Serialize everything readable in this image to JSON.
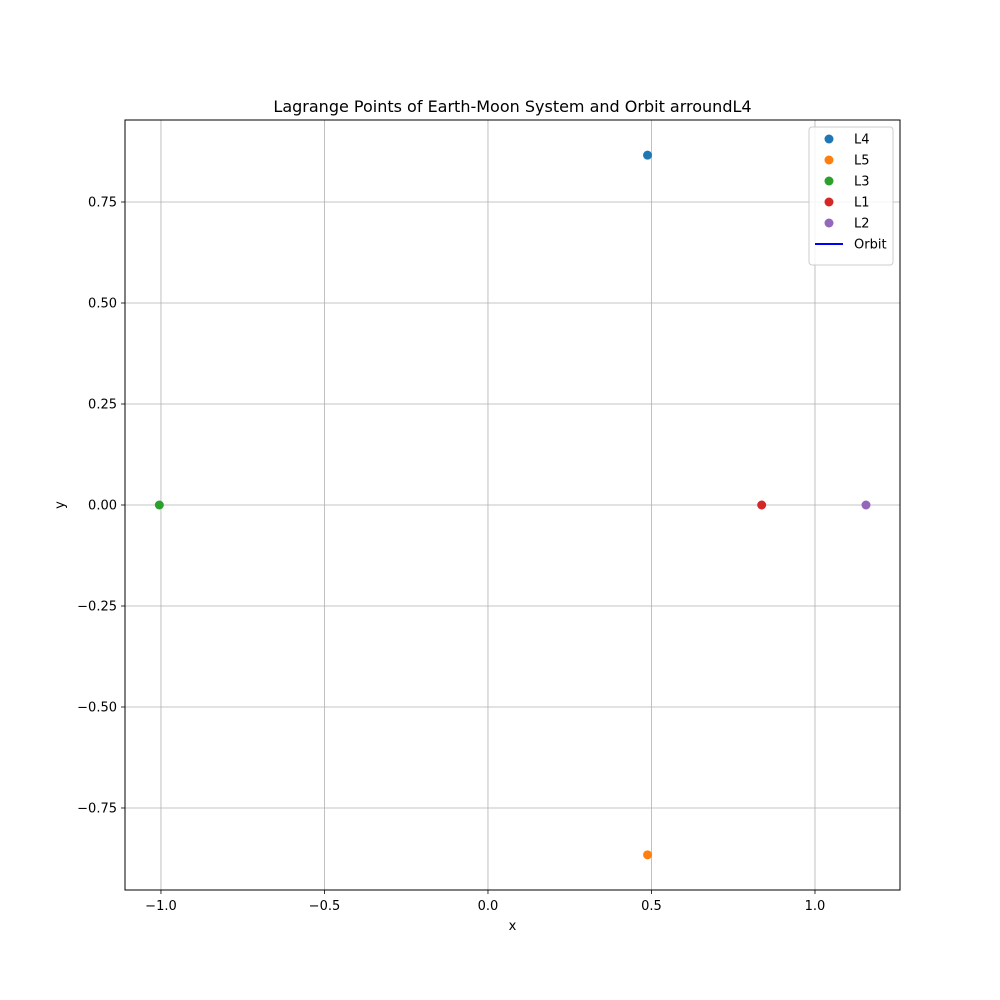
{
  "chart_data": {
    "type": "scatter",
    "title": "Lagrange Points of Earth-Moon System and Orbit arroundL4",
    "xlabel": "x",
    "ylabel": "y",
    "xlim": [
      -1.11,
      1.26
    ],
    "ylim": [
      -0.953,
      0.953
    ],
    "xticks": [
      {
        "value": -1.0,
        "label": "−1.0"
      },
      {
        "value": -0.5,
        "label": "−0.5"
      },
      {
        "value": 0.0,
        "label": "0.0"
      },
      {
        "value": 0.5,
        "label": "0.5"
      },
      {
        "value": 1.0,
        "label": "1.0"
      }
    ],
    "yticks": [
      {
        "value": -0.75,
        "label": "−0.75"
      },
      {
        "value": -0.5,
        "label": "−0.50"
      },
      {
        "value": -0.25,
        "label": "−0.25"
      },
      {
        "value": 0.0,
        "label": "0.00"
      },
      {
        "value": 0.25,
        "label": "0.25"
      },
      {
        "value": 0.5,
        "label": "0.50"
      },
      {
        "value": 0.75,
        "label": "0.75"
      }
    ],
    "grid": true,
    "legend_position": "top-right",
    "series": [
      {
        "name": "L4",
        "kind": "point",
        "color": "#1f77b4",
        "points": [
          [
            0.488,
            0.866
          ]
        ]
      },
      {
        "name": "L5",
        "kind": "point",
        "color": "#ff7f0e",
        "points": [
          [
            0.488,
            -0.866
          ]
        ]
      },
      {
        "name": "L3",
        "kind": "point",
        "color": "#2ca02c",
        "points": [
          [
            -1.005,
            0.0
          ]
        ]
      },
      {
        "name": "L1",
        "kind": "point",
        "color": "#d62728",
        "points": [
          [
            0.837,
            0.0
          ]
        ]
      },
      {
        "name": "L2",
        "kind": "point",
        "color": "#9467bd",
        "points": [
          [
            1.156,
            0.0
          ]
        ]
      },
      {
        "name": "Orbit",
        "kind": "line",
        "color": "#0000ff",
        "points": [
          [
            0.484,
            0.866
          ],
          [
            0.4865,
            0.8672
          ],
          [
            0.489,
            0.866
          ],
          [
            0.4865,
            0.8648
          ],
          [
            0.484,
            0.866
          ]
        ]
      }
    ]
  }
}
